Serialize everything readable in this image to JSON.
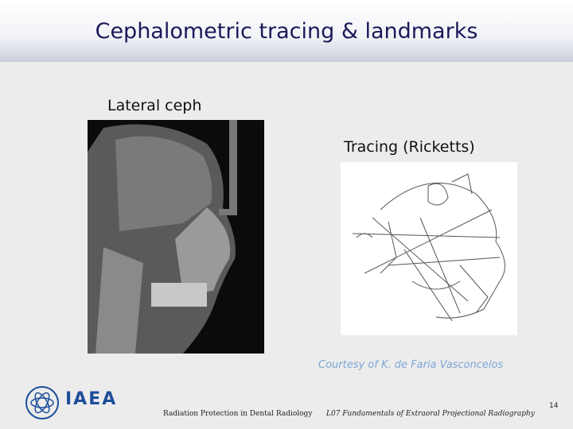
{
  "header": {
    "title": "Cephalometric tracing & landmarks"
  },
  "figures": [
    {
      "label": "Lateral ceph"
    },
    {
      "label": "Tracing (Ricketts)"
    }
  ],
  "credit": "Courtesy of K. de Faria Vasconcelos",
  "footer": {
    "logo": "IAEA",
    "course": "Radiation Protection in Dental Radiology",
    "lecture": "L07 Fundamentals of Extraoral Projectional Radiography",
    "page": "14"
  }
}
